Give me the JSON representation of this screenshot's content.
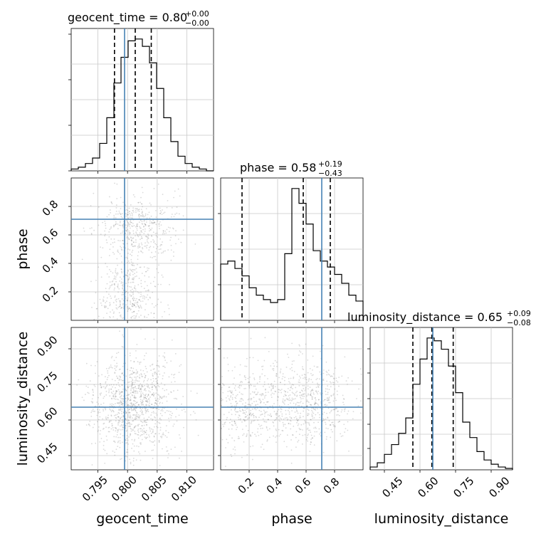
{
  "chart_data": {
    "type": "corner",
    "parameters": [
      "geocent_time",
      "phase",
      "luminosity_distance"
    ],
    "truths": {
      "geocent_time": 0.7995,
      "phase": 0.71,
      "luminosity_distance": 0.654
    },
    "titles": [
      {
        "param": "geocent_time",
        "main": "geocent_time = 0.80",
        "upper": "+0.00",
        "lower": "−0.00"
      },
      {
        "param": "phase",
        "main": "phase = 0.58",
        "upper": "+0.19",
        "lower": "−0.43"
      },
      {
        "param": "luminosity_distance",
        "main": "luminosity_distance = 0.65",
        "upper": "+0.09",
        "lower": "−0.08"
      }
    ],
    "quantiles": {
      "geocent_time": [
        0.7978,
        0.8013,
        0.804
      ],
      "phase": [
        0.15,
        0.58,
        0.77
      ],
      "luminosity_distance": [
        0.57,
        0.65,
        0.74
      ]
    },
    "ranges": {
      "geocent_time": [
        0.7905,
        0.8145
      ],
      "phase": [
        0.0,
        1.0
      ],
      "luminosity_distance": [
        0.39,
        0.99
      ]
    },
    "ticks": {
      "geocent_time": [
        "0.795",
        "0.800",
        "0.805",
        "0.810"
      ],
      "phase_y": [
        "0.2",
        "0.4",
        "0.6",
        "0.8"
      ],
      "phase_x": [
        "0.2",
        "0.4",
        "0.6",
        "0.8"
      ],
      "luminosity_distance_y": [
        "0.45",
        "0.60",
        "0.75",
        "0.90"
      ],
      "luminosity_distance_x": [
        "0.45",
        "0.60",
        "0.75",
        "0.90"
      ]
    },
    "axis_labels": {
      "geocent_time": "geocent_time",
      "phase": "phase",
      "luminosity_distance": "luminosity_distance"
    },
    "histograms": {
      "geocent_time": [
        1,
        2,
        4,
        7,
        15,
        29,
        48,
        62,
        71,
        72,
        68,
        59,
        45,
        29,
        16,
        8,
        4,
        2,
        1,
        0
      ],
      "phase": [
        38,
        40,
        35,
        30,
        22,
        17,
        14,
        12,
        14,
        45,
        89,
        79,
        65,
        47,
        40,
        36,
        31,
        25,
        17,
        13
      ],
      "luminosity_distance": [
        2,
        5,
        11,
        18,
        26,
        37,
        61,
        79,
        94,
        92,
        86,
        74,
        55,
        34,
        23,
        13,
        7,
        4,
        2,
        1
      ]
    },
    "colors": {
      "truth": "#4682b4",
      "line": "#000000",
      "grid": "#c8c8c8"
    }
  }
}
